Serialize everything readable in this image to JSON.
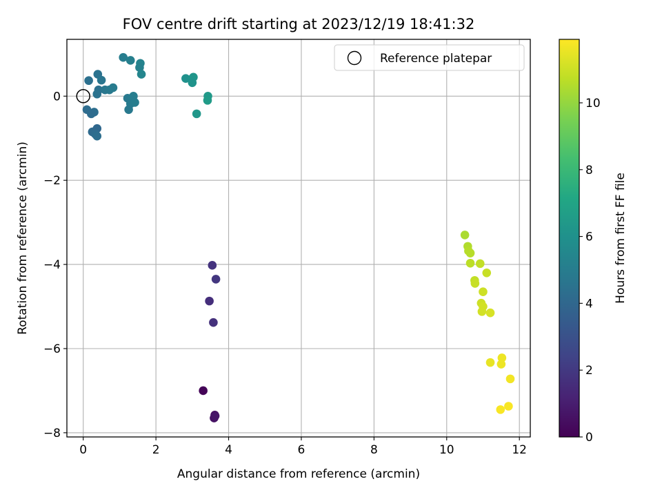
{
  "chart_data": {
    "type": "scatter",
    "title": "FOV centre drift starting at 2023/12/19 18:41:32",
    "xlabel": "Angular distance from reference (arcmin)",
    "ylabel": "Rotation from reference (arcmin)",
    "xlim": [
      -0.45,
      12.3
    ],
    "ylim": [
      -8.1,
      1.35
    ],
    "xticks": [
      0,
      2,
      4,
      6,
      8,
      10,
      12
    ],
    "xtick_labels": [
      "0",
      "2",
      "4",
      "6",
      "8",
      "10",
      "12"
    ],
    "yticks": [
      -8,
      -6,
      -4,
      -2,
      0
    ],
    "ytick_labels": [
      "−8",
      "−6",
      "−4",
      "−2",
      "0"
    ],
    "grid": true,
    "legend": {
      "placement": "upper right",
      "entries": [
        "Reference platepar"
      ]
    },
    "reference_point": {
      "label": "Reference platepar",
      "x": 0,
      "y": 0
    },
    "colorbar": {
      "label": "Hours from first FF file",
      "colormap": "viridis",
      "range": [
        0,
        11.9
      ],
      "ticks": [
        0,
        2,
        4,
        6,
        8,
        10
      ],
      "tick_labels": [
        "0",
        "2",
        "4",
        "6",
        "8",
        "10"
      ]
    },
    "series": [
      {
        "points": [
          {
            "x": 3.3,
            "y": -7.0,
            "c": 0.1
          },
          {
            "x": 3.62,
            "y": -7.58,
            "c": 0.5
          },
          {
            "x": 3.6,
            "y": -7.65,
            "c": 0.6
          },
          {
            "x": 3.63,
            "y": -7.6,
            "c": 0.7
          },
          {
            "x": 3.55,
            "y": -4.02,
            "c": 1.8
          },
          {
            "x": 3.65,
            "y": -4.35,
            "c": 1.9
          },
          {
            "x": 3.47,
            "y": -4.87,
            "c": 1.6
          },
          {
            "x": 3.58,
            "y": -5.38,
            "c": 1.7
          },
          {
            "x": 0.1,
            "y": -0.32,
            "c": 4.2
          },
          {
            "x": 0.3,
            "y": -0.38,
            "c": 4.3
          },
          {
            "x": 0.22,
            "y": -0.42,
            "c": 4.2
          },
          {
            "x": 0.25,
            "y": -0.85,
            "c": 4.1
          },
          {
            "x": 0.38,
            "y": -0.77,
            "c": 4.0
          },
          {
            "x": 0.33,
            "y": -0.9,
            "c": 4.2
          },
          {
            "x": 0.38,
            "y": -0.95,
            "c": 4.3
          },
          {
            "x": 0.15,
            "y": 0.37,
            "c": 4.4
          },
          {
            "x": 0.4,
            "y": 0.52,
            "c": 4.5
          },
          {
            "x": 0.5,
            "y": 0.38,
            "c": 4.6
          },
          {
            "x": 0.42,
            "y": 0.15,
            "c": 4.4
          },
          {
            "x": 0.38,
            "y": 0.05,
            "c": 4.5
          },
          {
            "x": 0.6,
            "y": 0.15,
            "c": 4.7
          },
          {
            "x": 0.72,
            "y": 0.15,
            "c": 4.8
          },
          {
            "x": 0.82,
            "y": 0.2,
            "c": 4.9
          },
          {
            "x": 1.1,
            "y": 0.92,
            "c": 5.0
          },
          {
            "x": 1.3,
            "y": 0.85,
            "c": 5.1
          },
          {
            "x": 1.57,
            "y": 0.78,
            "c": 5.3
          },
          {
            "x": 1.55,
            "y": 0.68,
            "c": 5.2
          },
          {
            "x": 1.6,
            "y": 0.52,
            "c": 5.4
          },
          {
            "x": 1.22,
            "y": -0.05,
            "c": 4.8
          },
          {
            "x": 1.35,
            "y": -0.05,
            "c": 4.9
          },
          {
            "x": 1.38,
            "y": 0.0,
            "c": 5.0
          },
          {
            "x": 1.3,
            "y": -0.18,
            "c": 4.9
          },
          {
            "x": 1.42,
            "y": -0.15,
            "c": 5.0
          },
          {
            "x": 1.25,
            "y": -0.32,
            "c": 4.8
          },
          {
            "x": 2.82,
            "y": 0.42,
            "c": 6.0
          },
          {
            "x": 3.0,
            "y": 0.42,
            "c": 6.1
          },
          {
            "x": 3.03,
            "y": 0.45,
            "c": 6.2
          },
          {
            "x": 3.0,
            "y": 0.32,
            "c": 6.1
          },
          {
            "x": 3.12,
            "y": -0.42,
            "c": 6.3
          },
          {
            "x": 3.43,
            "y": 0.0,
            "c": 6.4
          },
          {
            "x": 3.42,
            "y": -0.1,
            "c": 6.5
          },
          {
            "x": 10.5,
            "y": -3.3,
            "c": 10.4
          },
          {
            "x": 10.58,
            "y": -3.57,
            "c": 10.5
          },
          {
            "x": 10.6,
            "y": -3.68,
            "c": 10.6
          },
          {
            "x": 10.65,
            "y": -3.73,
            "c": 10.6
          },
          {
            "x": 10.65,
            "y": -3.97,
            "c": 10.7
          },
          {
            "x": 10.92,
            "y": -3.98,
            "c": 10.8
          },
          {
            "x": 11.1,
            "y": -4.2,
            "c": 10.9
          },
          {
            "x": 10.77,
            "y": -4.38,
            "c": 10.8
          },
          {
            "x": 10.78,
            "y": -4.45,
            "c": 10.9
          },
          {
            "x": 11.0,
            "y": -4.65,
            "c": 11.0
          },
          {
            "x": 10.95,
            "y": -4.92,
            "c": 11.0
          },
          {
            "x": 11.0,
            "y": -5.0,
            "c": 11.1
          },
          {
            "x": 10.97,
            "y": -5.12,
            "c": 11.1
          },
          {
            "x": 11.2,
            "y": -5.15,
            "c": 11.2
          },
          {
            "x": 11.2,
            "y": -6.33,
            "c": 11.5
          },
          {
            "x": 11.52,
            "y": -6.22,
            "c": 11.6
          },
          {
            "x": 11.5,
            "y": -6.37,
            "c": 11.6
          },
          {
            "x": 11.75,
            "y": -6.72,
            "c": 11.7
          },
          {
            "x": 11.7,
            "y": -7.37,
            "c": 11.8
          },
          {
            "x": 11.48,
            "y": -7.45,
            "c": 11.8
          }
        ]
      }
    ]
  }
}
